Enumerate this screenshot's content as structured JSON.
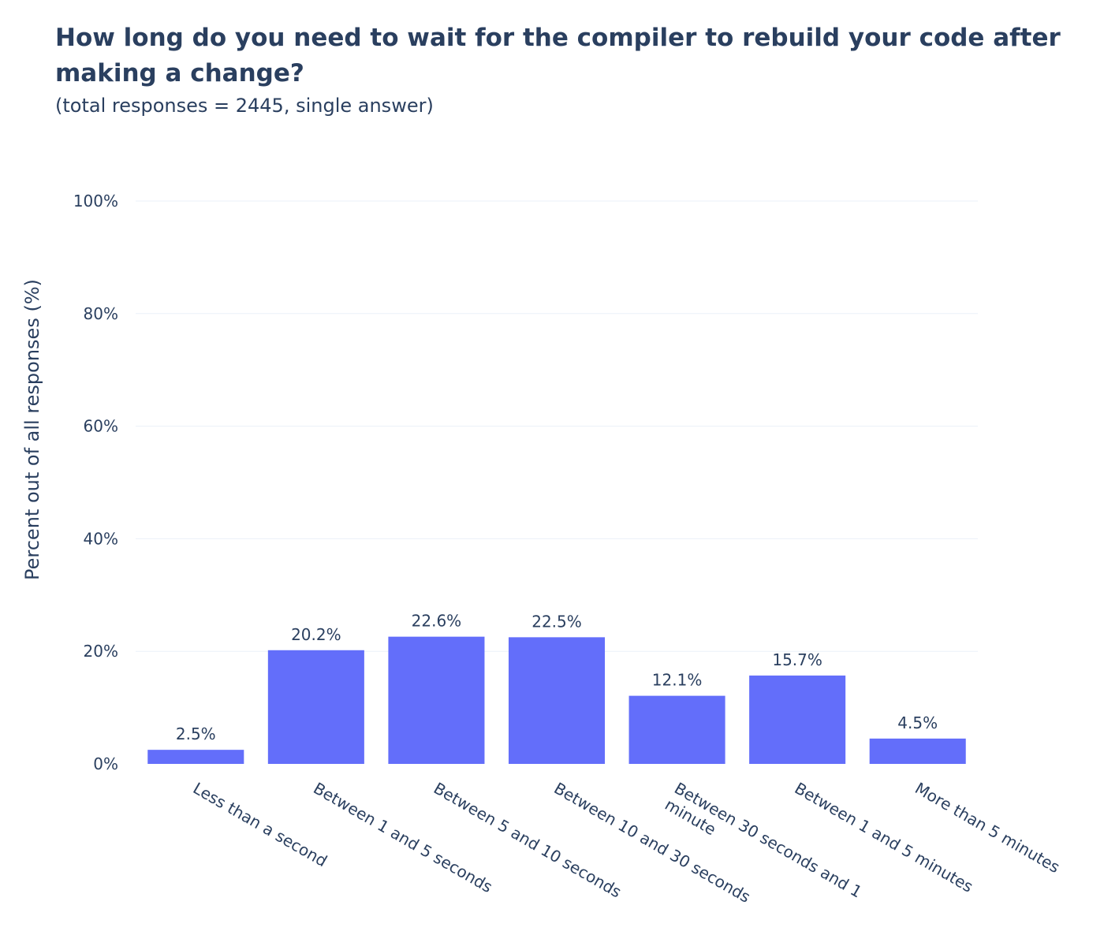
{
  "chart_data": {
    "type": "bar",
    "title": "How long do you need to wait for the compiler to rebuild your code after making a change?",
    "subtitle": "(total responses = 2445, single answer)",
    "xlabel": "",
    "ylabel": "Percent out of all responses (%)",
    "ylim": [
      0,
      100
    ],
    "yticks": [
      0,
      20,
      40,
      60,
      80,
      100
    ],
    "ytick_labels": [
      "0%",
      "20%",
      "40%",
      "60%",
      "80%",
      "100%"
    ],
    "grid": true,
    "bar_color": "#636efa",
    "categories": [
      [
        "Less than a second"
      ],
      [
        "Between 1 and 5 seconds"
      ],
      [
        "Between 5 and 10 seconds"
      ],
      [
        "Between 10 and 30 seconds"
      ],
      [
        "Between 30 seconds and 1",
        "minute"
      ],
      [
        "Between 1 and 5 minutes"
      ],
      [
        "More than 5 minutes"
      ]
    ],
    "values": [
      2.5,
      20.2,
      22.6,
      22.5,
      12.1,
      15.7,
      4.5
    ],
    "value_labels": [
      "2.5%",
      "20.2%",
      "22.6%",
      "22.5%",
      "12.1%",
      "15.7%",
      "4.5%"
    ]
  }
}
